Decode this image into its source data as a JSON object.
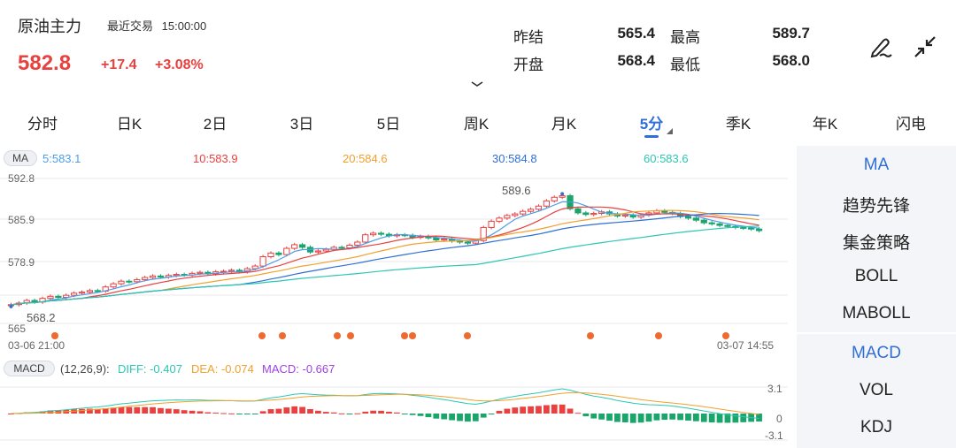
{
  "header": {
    "title": "原油主力",
    "status": "最近交易",
    "time": "15:00:00",
    "price": "582.8",
    "change": "+17.4",
    "change_pct": "+3.08%"
  },
  "quote": {
    "prev_settle_label": "昨结",
    "prev_settle": "565.4",
    "high_label": "最高",
    "high": "589.7",
    "open_label": "开盘",
    "open": "568.4",
    "low_label": "最低",
    "low": "568.0"
  },
  "tabs": [
    "分时",
    "日K",
    "2日",
    "3日",
    "5日",
    "周K",
    "月K",
    "5分",
    "季K",
    "年K",
    "闪电"
  ],
  "active_tab": "5分",
  "ma_legend": {
    "tag": "MA",
    "ma5": "5:583.1",
    "ma10": "10:583.9",
    "ma20": "20:584.6",
    "ma30": "30:584.8",
    "ma60": "60:583.6"
  },
  "macd_legend": {
    "tag": "MACD",
    "params": "(12,26,9):",
    "diff": "DIFF: -0.407",
    "dea": "DEA: -0.074",
    "macd": "MACD: -0.667"
  },
  "side_menu": [
    "MA",
    "趋势先锋",
    "集金策略",
    "BOLL",
    "MABOLL",
    "MACD",
    "VOL",
    "KDJ"
  ],
  "colors": {
    "up": "#e8413f",
    "down": "#1aa56b",
    "ma5": "#4a9ee8",
    "ma10": "#e8413f",
    "ma20": "#f2a02c",
    "ma30": "#2f6fd6",
    "ma60": "#2cc7b4",
    "active": "#2f6fd6"
  },
  "chart_data": {
    "type": "candlestick",
    "y_axis_labels": [
      "592.8",
      "585.9",
      "578.9",
      "565"
    ],
    "ylim": [
      565,
      592.8
    ],
    "x_start_label": "03-06 21:00",
    "x_end_label": "03-07 14:55",
    "annotations": {
      "max_label": "589.6",
      "min_label": "568.2"
    },
    "macd_axis_labels": [
      "3.1",
      "0",
      "-3.1"
    ],
    "macd_ylim": [
      -3.1,
      3.1
    ],
    "closes": [
      568.6,
      568.9,
      569.4,
      569.1,
      569.8,
      570.2,
      570.0,
      570.4,
      570.8,
      571.0,
      571.3,
      571.2,
      572.0,
      572.6,
      573.1,
      573.0,
      573.4,
      573.8,
      574.1,
      573.9,
      574.2,
      574.4,
      574.3,
      574.6,
      574.8,
      574.5,
      574.9,
      575.0,
      575.2,
      574.9,
      575.5,
      576.0,
      577.8,
      578.5,
      578.2,
      579.4,
      580.1,
      579.6,
      578.7,
      578.9,
      579.2,
      579.6,
      579.5,
      580.0,
      580.6,
      582.0,
      582.3,
      582.1,
      581.8,
      582.0,
      581.9,
      581.5,
      581.7,
      581.4,
      581.0,
      581.2,
      580.8,
      580.6,
      580.4,
      580.9,
      583.4,
      584.6,
      585.2,
      585.7,
      586.0,
      586.5,
      586.9,
      587.5,
      588.5,
      589.2,
      589.5,
      587.0,
      586.2,
      585.9,
      586.1,
      586.4,
      586.0,
      585.6,
      585.8,
      585.4,
      585.8,
      586.2,
      586.6,
      586.3,
      586.1,
      585.5,
      585.2,
      584.8,
      584.3,
      584.1,
      583.8,
      583.6,
      583.4,
      583.3,
      583.1,
      582.8
    ],
    "volume_dots_x": [
      62,
      296,
      319,
      381,
      396,
      457,
      466,
      528,
      667,
      744,
      820
    ]
  }
}
